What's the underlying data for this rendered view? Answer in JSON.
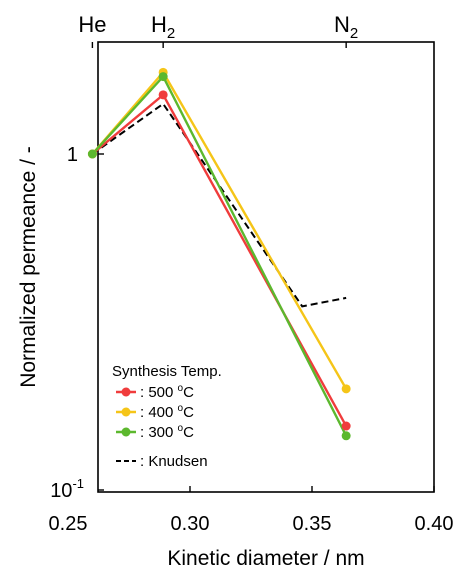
{
  "chart_data": {
    "type": "line",
    "xlabel": "Kinetic diameter / nm",
    "ylabel": "Normalized permeance / -",
    "xlim": [
      0.25,
      0.4
    ],
    "ylim": [
      0.1,
      1.8
    ],
    "y_scale": "log",
    "x_ticks": [
      0.25,
      0.3,
      0.35,
      0.4
    ],
    "x_tick_labels": [
      "0.25",
      "0.30",
      "0.35",
      "0.40"
    ],
    "y_ticks": [
      0.1,
      1
    ],
    "y_tick_labels": {
      "main": [
        "10",
        "1"
      ],
      "sup": [
        "-1",
        ""
      ]
    },
    "top_labels": [
      {
        "base": "He",
        "sub": "",
        "x": 0.26
      },
      {
        "base": "H",
        "sub": "2",
        "x": 0.289
      },
      {
        "base": "N",
        "sub": "2",
        "x": 0.364
      }
    ],
    "x": [
      0.26,
      0.289,
      0.364
    ],
    "series": [
      {
        "name": "500 °C",
        "color": "#f03c3c",
        "marker": "circle",
        "values": [
          1.0,
          1.5,
          0.155
        ]
      },
      {
        "name": "400 °C",
        "color": "#f5c518",
        "marker": "circle",
        "values": [
          1.0,
          1.75,
          0.2
        ]
      },
      {
        "name": "300 °C",
        "color": "#5cb82e",
        "marker": "circle",
        "values": [
          1.0,
          1.7,
          0.145
        ]
      },
      {
        "name": "Knudsen",
        "color": "#000000",
        "marker": "none",
        "dash": true,
        "x": [
          0.26,
          0.289,
          0.346,
          0.364
        ],
        "values": [
          1.0,
          1.41,
          0.352,
          0.373
        ]
      }
    ],
    "legend": {
      "title": "Synthesis Temp.",
      "entries": [
        {
          "text": ": 500 ",
          "unit": "C",
          "sup": "o"
        },
        {
          "text": ": 400 ",
          "unit": "C",
          "sup": "o"
        },
        {
          "text": ": 300 ",
          "unit": "C",
          "sup": "o"
        },
        {
          "text": ": Knudsen",
          "unit": "",
          "sup": ""
        }
      ],
      "placement": "bottom-left"
    },
    "grid": false
  }
}
